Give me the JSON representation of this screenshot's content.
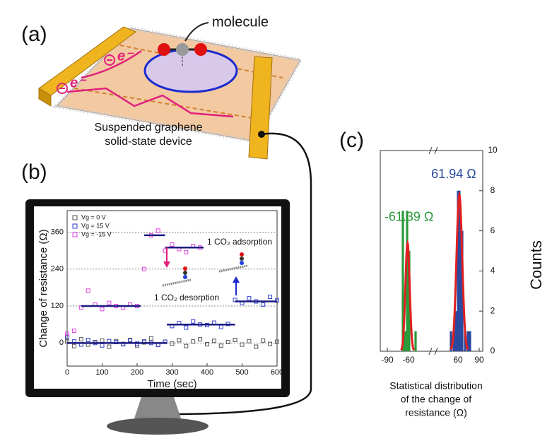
{
  "panel_labels": [
    "(a)",
    "(b)",
    "(c)"
  ],
  "diagram": {
    "molecule_label": "molecule",
    "device_label": [
      "Suspended graphene",
      "solid-state device"
    ],
    "electron_label": "e⁻"
  },
  "chart_data": [
    {
      "type": "line",
      "ylabel": "Change of resistance (Ω)",
      "xlabel": "Time (sec)",
      "xlim": [
        0,
        600
      ],
      "xticks": [
        0,
        100,
        200,
        300,
        400,
        500,
        600
      ],
      "ylim": [
        -75,
        430
      ],
      "yticks": [
        0,
        120,
        240,
        360
      ],
      "grid": true,
      "legend": "upper left",
      "series": [
        {
          "name": "Vg =  0 V",
          "color": "#555555",
          "x": [
            0,
            20,
            40,
            60,
            80,
            100,
            120,
            140,
            160,
            180,
            200,
            220,
            240,
            260,
            280,
            300,
            320,
            340,
            360,
            380,
            400,
            420,
            440,
            460,
            480,
            500,
            520,
            540,
            560,
            580,
            600
          ],
          "values": [
            5,
            -10,
            12,
            -5,
            3,
            8,
            -12,
            6,
            -3,
            10,
            -8,
            2,
            15,
            -6,
            4,
            -2,
            9,
            -10,
            5,
            12,
            -4,
            7,
            -9,
            3,
            10,
            -5,
            6,
            -12,
            8,
            -3,
            4
          ]
        },
        {
          "name": "Vg = 15 V",
          "color": "#3040d0",
          "x": [
            0,
            20,
            40,
            60,
            80,
            100,
            120,
            140,
            160,
            180,
            200,
            220,
            240,
            260,
            280,
            300,
            320,
            340,
            360,
            380,
            400,
            420,
            440,
            460,
            480,
            500,
            520,
            540,
            560,
            580,
            600
          ],
          "values": [
            20,
            5,
            -5,
            10,
            0,
            -8,
            6,
            3,
            -4,
            8,
            -2,
            5,
            0,
            -6,
            4,
            55,
            65,
            50,
            70,
            60,
            58,
            66,
            52,
            62,
            140,
            130,
            145,
            135,
            125,
            150,
            138
          ],
          "levels": [
            {
              "x0": 0,
              "x1": 285,
              "value": 0
            },
            {
              "x0": 285,
              "x1": 480,
              "value": 60
            },
            {
              "x0": 480,
              "x1": 600,
              "value": 135
            }
          ]
        },
        {
          "name": "Vg = -15 V",
          "color": "#e040e0",
          "x": [
            0,
            20,
            40,
            60,
            80,
            100,
            120,
            140,
            160,
            180,
            200,
            220,
            240,
            260,
            280,
            300,
            320,
            340,
            360,
            380
          ],
          "values": [
            30,
            40,
            115,
            170,
            125,
            110,
            130,
            120,
            115,
            125,
            120,
            240,
            350,
            365,
            300,
            320,
            305,
            295,
            315,
            310
          ],
          "levels": [
            {
              "x0": 40,
              "x1": 210,
              "value": 120
            },
            {
              "x0": 220,
              "x1": 280,
              "value": 350
            },
            {
              "x0": 280,
              "x1": 390,
              "value": 310
            }
          ]
        }
      ],
      "annotations": [
        "1 CO₂ adsorption",
        "1 CO₂ desorption"
      ]
    },
    {
      "type": "bar",
      "ylabel": "Counts",
      "xlabel": [
        "Statistical distribution",
        "of the change of",
        "resistance (Ω)"
      ],
      "xlim": [
        -100,
        95
      ],
      "xbreak": [
        -40,
        40
      ],
      "xticks": [
        -90,
        -60,
        60,
        90
      ],
      "ylim": [
        0,
        10
      ],
      "yticks": [
        0,
        2,
        4,
        6,
        8,
        10
      ],
      "yaxis": "right",
      "series": [
        {
          "color": "#2a9a3a",
          "x": [
            -68,
            -65,
            -62,
            -59,
            -50
          ],
          "values": [
            7,
            1,
            7,
            5,
            1
          ]
        },
        {
          "color": "#2a4aa0",
          "x": [
            50,
            54,
            57,
            60,
            62,
            64,
            66,
            70,
            74,
            77
          ],
          "values": [
            1,
            1,
            2,
            8,
            8,
            6,
            6,
            1,
            1,
            1
          ]
        }
      ],
      "fits": [
        {
          "center": -61.39,
          "sigma": 3,
          "peak": 5.4,
          "color": "#e02020",
          "label": "-61.39 Ω",
          "label_color": "#2a9a3a"
        },
        {
          "center": 61.94,
          "sigma": 4,
          "peak": 7.8,
          "color": "#e02020",
          "label": "61.94 Ω",
          "label_color": "#2a4aa0"
        }
      ]
    }
  ]
}
